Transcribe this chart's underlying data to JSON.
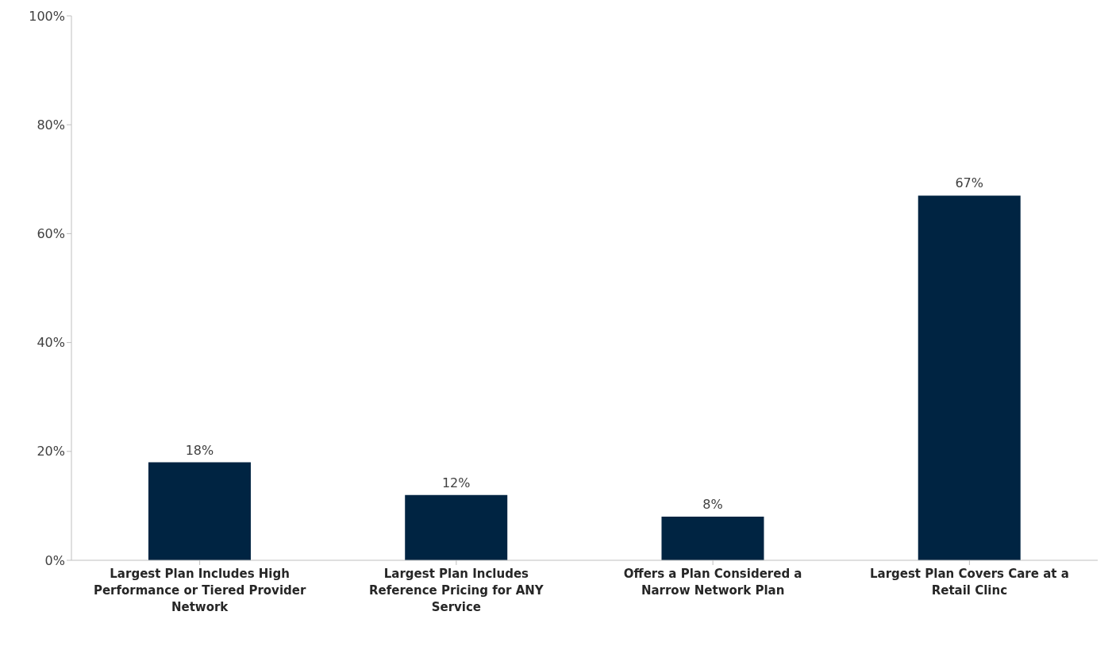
{
  "chart_data": {
    "type": "bar",
    "categories": [
      "Largest Plan Includes High Performance or Tiered Provider Network",
      "Largest Plan Includes Reference Pricing for ANY Service",
      "Offers a Plan Considered a Narrow Network Plan",
      "Largest Plan Covers Care at a Retail Clinc"
    ],
    "values": [
      18,
      12,
      8,
      67
    ],
    "value_labels": [
      "18%",
      "12%",
      "8%",
      "67%"
    ],
    "color": "#002442",
    "ylim": [
      0,
      100
    ],
    "yticks": [
      {
        "value": 0,
        "label": "0%"
      },
      {
        "value": 20,
        "label": "20%"
      },
      {
        "value": 40,
        "label": "40%"
      },
      {
        "value": 60,
        "label": "60%"
      },
      {
        "value": 80,
        "label": "80%"
      },
      {
        "value": 100,
        "label": "100%"
      }
    ],
    "grid": false,
    "legend": false
  }
}
